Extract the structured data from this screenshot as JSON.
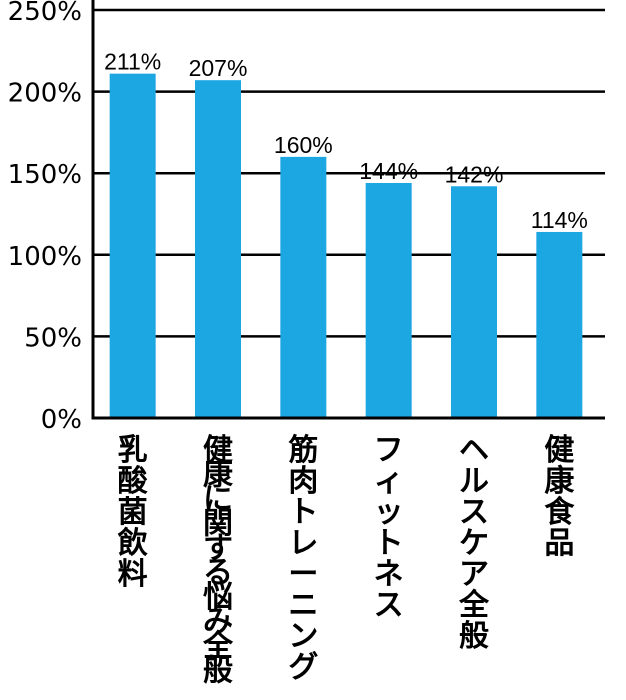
{
  "chart_data": {
    "type": "bar",
    "categories": [
      "乳酸菌飲料",
      "健康に関する悩み全般",
      "筋肉トレーニング",
      "フィットネス",
      "ヘルスケア全般",
      "健康食品"
    ],
    "values": [
      211,
      207,
      160,
      144,
      142,
      114
    ],
    "data_labels": [
      "211%",
      "207%",
      "160%",
      "144%",
      "142%",
      "114%"
    ],
    "ytick_labels": [
      "0%",
      "50%",
      "100%",
      "150%",
      "200%",
      "250%"
    ],
    "yticks": [
      0,
      50,
      100,
      150,
      200,
      250
    ],
    "ylim": [
      0,
      250
    ],
    "grid": true,
    "legend": "none",
    "bar_color": "#1DA7E2",
    "grid_color": "#000000"
  }
}
